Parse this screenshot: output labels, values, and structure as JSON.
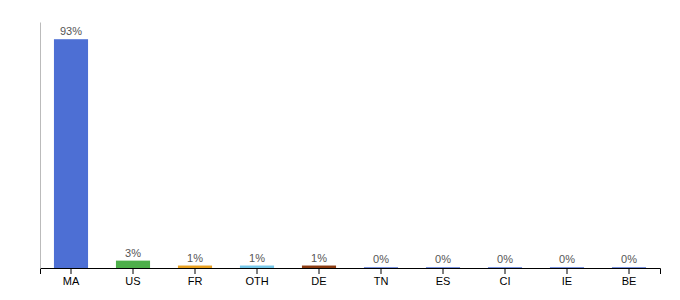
{
  "chart_data": {
    "type": "bar",
    "categories": [
      "MA",
      "US",
      "FR",
      "OTH",
      "DE",
      "TN",
      "ES",
      "CI",
      "IE",
      "BE"
    ],
    "values": [
      93,
      3,
      1,
      1,
      1,
      0.3,
      0.3,
      0.3,
      0.3,
      0.3
    ],
    "value_labels": [
      "93%",
      "3%",
      "1%",
      "1%",
      "1%",
      "0%",
      "0%",
      "0%",
      "0%",
      "0%"
    ],
    "colors": [
      "#4d6fd4",
      "#4daf4a",
      "#e8a020",
      "#74c6e8",
      "#8b3a10",
      "#4d6fd4",
      "#4d6fd4",
      "#4d6fd4",
      "#4d6fd4",
      "#4d6fd4"
    ],
    "ylim": [
      0,
      100
    ],
    "grid": false,
    "data_labels": true,
    "tick_labels": "x"
  }
}
